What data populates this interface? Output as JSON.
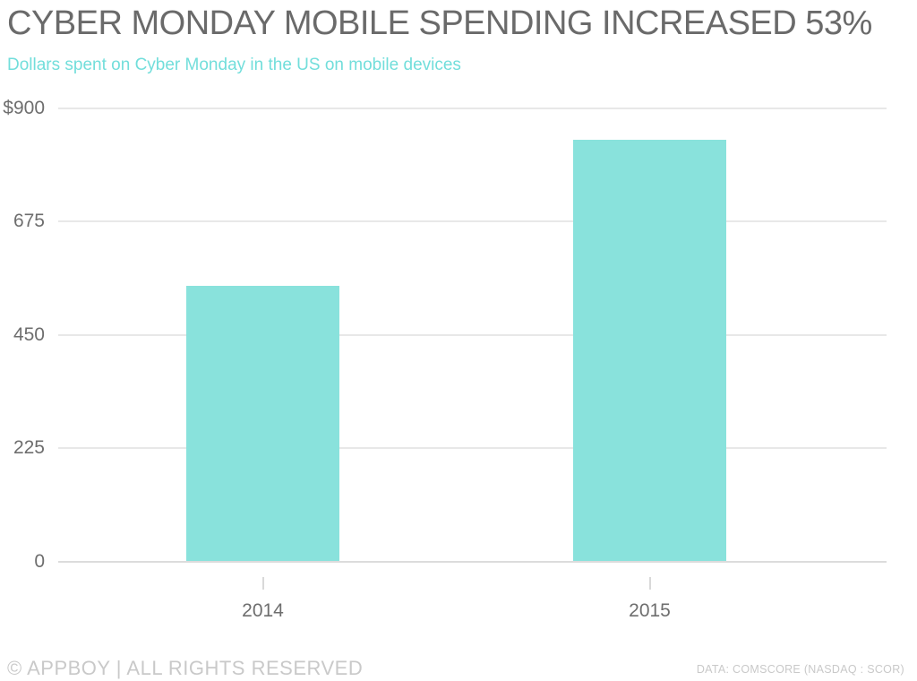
{
  "header": {
    "title": "CYBER MONDAY MOBILE SPENDING INCREASED 53%",
    "subtitle": "Dollars spent on Cyber Monday in the US on mobile devices"
  },
  "chart_data": {
    "type": "bar",
    "title": "CYBER MONDAY MOBILE SPENDING INCREASED 53%",
    "subtitle": "Dollars spent on Cyber Monday in the US on mobile devices",
    "categories": [
      "2014",
      "2015"
    ],
    "values": [
      548,
      838
    ],
    "xlabel": "",
    "ylabel": "",
    "ylim": [
      0,
      900
    ],
    "yticks": [
      {
        "value": 900,
        "label": "$900"
      },
      {
        "value": 675,
        "label": "675"
      },
      {
        "value": 450,
        "label": "450"
      },
      {
        "value": 225,
        "label": "225"
      },
      {
        "value": 0,
        "label": "0"
      }
    ],
    "grid": "horizontal",
    "legend": "none",
    "bar_color": "#89e2dc"
  },
  "footer": {
    "copyright": "© APPBOY | ALL RIGHTS RESERVED",
    "source": "DATA: COMSCORE (NASDAQ : SCOR)"
  },
  "colors": {
    "title_text": "#6a6a6a",
    "subtitle_text": "#72dedb",
    "bar": "#89e2dc",
    "gridline": "#e8e8e8",
    "axis_label": "#6e6e6e",
    "footer_text": "#c9c9c9"
  }
}
